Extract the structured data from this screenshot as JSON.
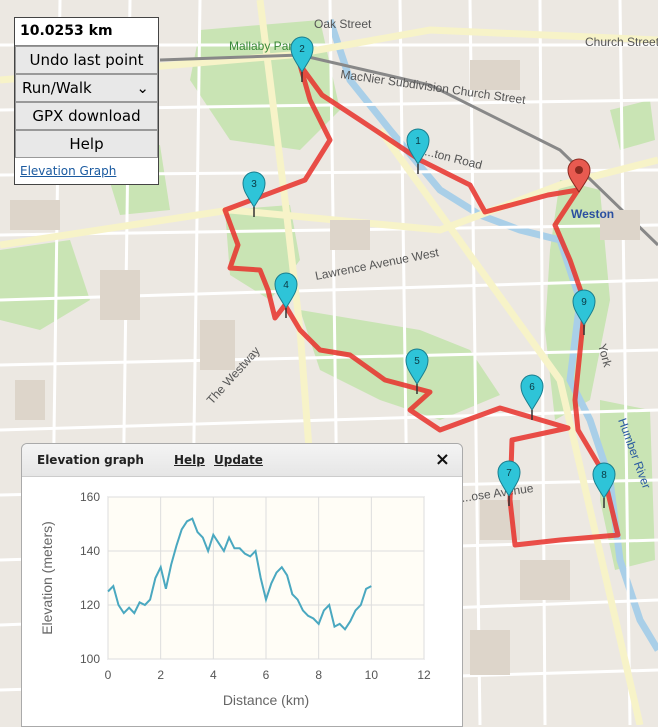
{
  "controls": {
    "distance": "10.0253 km",
    "undo_label": "Undo last point",
    "mode_label": "Run/Walk",
    "gpx_label": "GPX download",
    "help_label": "Help",
    "elevation_link": "Elevation Graph"
  },
  "map": {
    "streets": {
      "oak": "Oak Street",
      "church": "Church Street",
      "macnier": "MacNier Subdivision Church Street",
      "lawrence": "Lawrence Avenue West",
      "westway": "The Westway",
      "road": "...ton Road",
      "york": "York",
      "humber": "Humber River",
      "rose": "...ose Avenue"
    },
    "places": {
      "mallaby": "Mallaby Park",
      "weston": "Weston"
    },
    "markers": [
      "1",
      "2",
      "3",
      "4",
      "5",
      "6",
      "7",
      "8",
      "9"
    ],
    "route_color": "#e8302a",
    "marker_color": "#2ec4d8"
  },
  "elevation": {
    "title": "Elevation graph",
    "help_label": "Help",
    "update_label": "Update",
    "close_icon": "×"
  },
  "chart_data": {
    "type": "line",
    "title": "",
    "xlabel": "Distance (km)",
    "ylabel": "Elevation (meters)",
    "xlim": [
      0,
      12
    ],
    "ylim": [
      100,
      160
    ],
    "xticks": [
      0,
      2,
      4,
      6,
      8,
      10,
      12
    ],
    "yticks": [
      100,
      120,
      140,
      160
    ],
    "line_color": "#4aa8c0",
    "series": [
      {
        "x": [
          0,
          0.2,
          0.4,
          0.6,
          0.8,
          1.0,
          1.2,
          1.4,
          1.6,
          1.8,
          2.0,
          2.2,
          2.4,
          2.6,
          2.8,
          3.0,
          3.2,
          3.4,
          3.6,
          3.8,
          4.0,
          4.2,
          4.4,
          4.6,
          4.8,
          5.0,
          5.2,
          5.4,
          5.6,
          5.8,
          6.0,
          6.2,
          6.4,
          6.6,
          6.8,
          7.0,
          7.2,
          7.4,
          7.6,
          7.8,
          8.0,
          8.2,
          8.4,
          8.6,
          8.8,
          9.0,
          9.2,
          9.4,
          9.6,
          9.8,
          10.0
        ],
        "y": [
          125,
          127,
          120,
          117,
          119,
          117,
          121,
          120,
          122,
          130,
          134,
          126,
          135,
          142,
          148,
          151,
          152,
          147,
          145,
          140,
          146,
          143,
          140,
          145,
          141,
          141,
          139,
          138,
          140,
          130,
          122,
          128,
          132,
          134,
          131,
          124,
          122,
          118,
          116,
          115,
          113,
          118,
          120,
          112,
          113,
          111,
          114,
          118,
          120,
          126,
          127
        ]
      }
    ]
  }
}
